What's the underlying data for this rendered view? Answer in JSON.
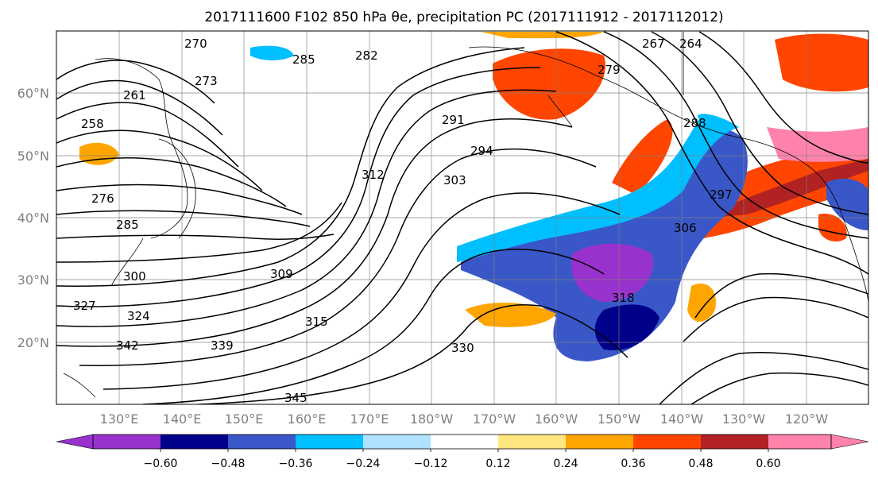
{
  "title": "2017111600 F102 850 hPa θe, precipitation PC (2017111912 - 2017112012)",
  "map": {
    "lat_labels": [
      "60°N",
      "50°N",
      "40°N",
      "30°N",
      "20°N"
    ],
    "lon_labels": [
      "130°E",
      "140°E",
      "150°E",
      "160°E",
      "170°E",
      "180°W",
      "170°W",
      "160°W",
      "150°W",
      "140°W",
      "130°W",
      "120°W"
    ],
    "contour_labels": [
      "270",
      "282",
      "285",
      "291",
      "294",
      "303",
      "312",
      "309",
      "315",
      "318",
      "330",
      "342",
      "345",
      "339",
      "324",
      "327",
      "300",
      "285",
      "276",
      "267",
      "264",
      "258",
      "261",
      "306",
      "297",
      "288",
      "279",
      "273"
    ],
    "theta_e_field": "850 hPa θe contours",
    "shading_field": "precipitation PC"
  },
  "colorbar": {
    "tick_labels": [
      "−0.60",
      "−0.48",
      "−0.36",
      "−0.24",
      "−0.12",
      "0.12",
      "0.24",
      "0.36",
      "0.48",
      "0.60"
    ],
    "colors": [
      "#9932cc",
      "#00008b",
      "#3a57c8",
      "#00bfff",
      "#b0e2ff",
      "#ffffff",
      "#ffe680",
      "#ffa500",
      "#ff4500",
      "#b22222",
      "#ff82ab"
    ],
    "extend": "both"
  }
}
